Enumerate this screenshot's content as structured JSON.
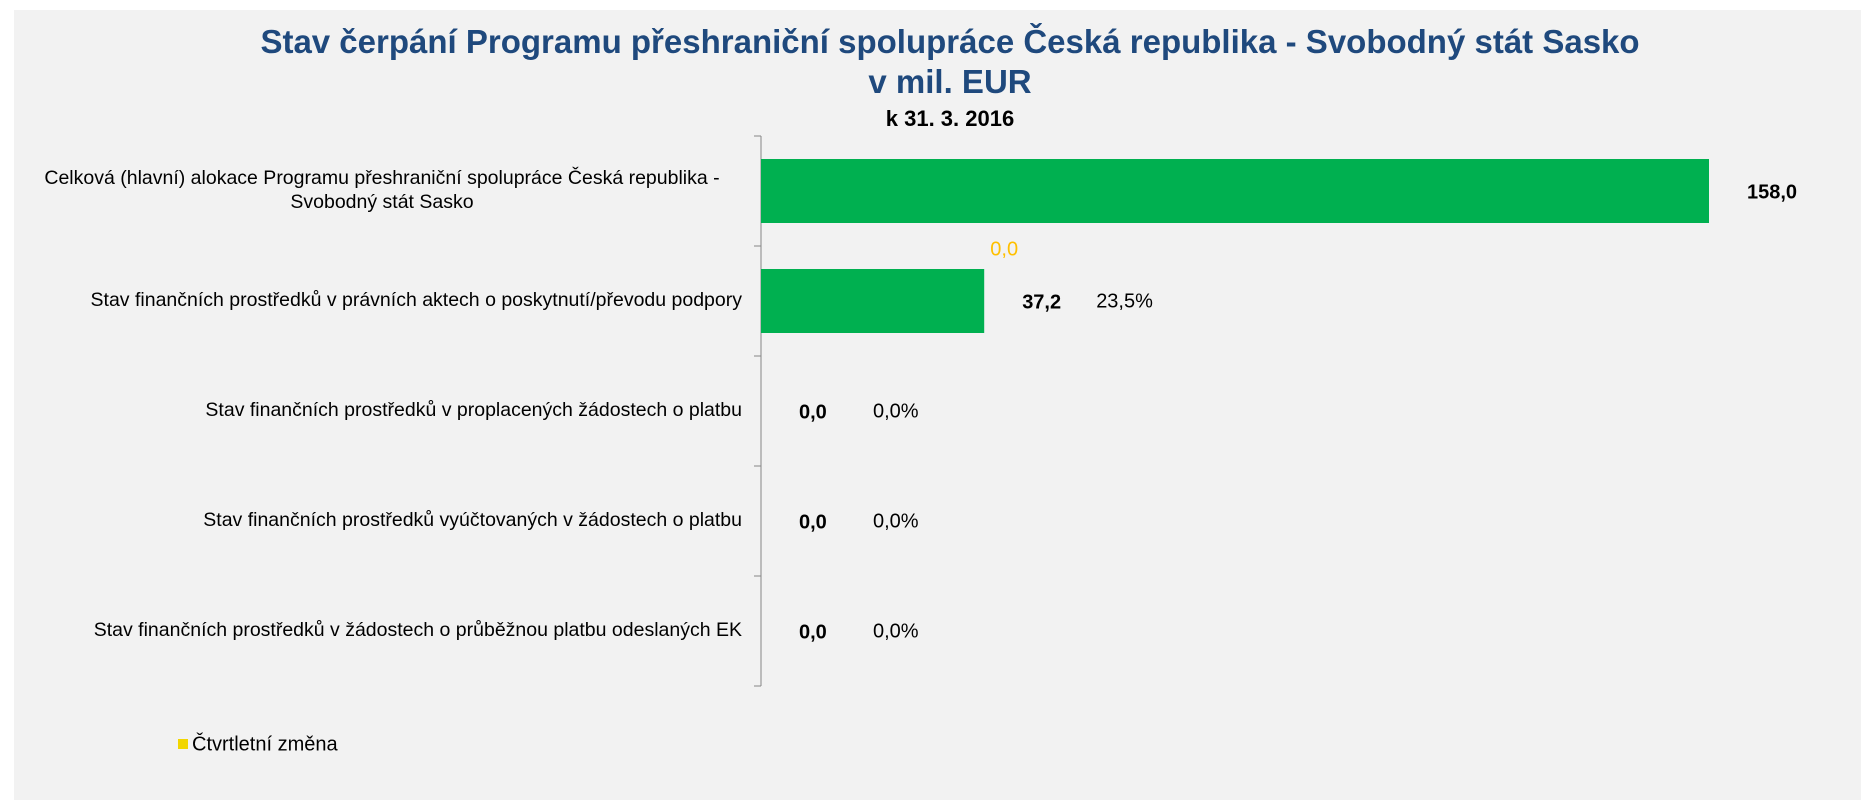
{
  "chart_data": {
    "type": "bar",
    "orientation": "horizontal",
    "title": "Stav čerpání Programu přeshraniční spolupráce Česká republika - Svobodný stát Sasko v mil. EUR",
    "subtitle": "k 31. 3. 2016",
    "categories": [
      "Celková (hlavní) alokace Programu přeshraniční spolupráce Česká republika - Svobodný stát Sasko",
      "Stav finančních prostředků v právních aktech o poskytnutí/převodu podpory",
      "Stav finančních prostředků v proplacených žádostech o platbu",
      "Stav finančních prostředků vyúčtovaných v žádostech o platbu",
      "Stav finančních prostředků v žádostech o průběžnou platbu odeslaných EK"
    ],
    "values": [
      158.0,
      37.2,
      0,
      0,
      0
    ],
    "value_labels": [
      "158,0",
      "37,2",
      "0,0",
      "0,0",
      "0,0"
    ],
    "color": "#00b050",
    "shares": [
      null,
      23.5,
      0,
      0,
      0
    ],
    "share_labels": [
      null,
      "23,5%",
      "0,0%",
      "0,0%",
      "0,0%"
    ],
    "series": [
      {
        "name": "Čtvrtletní změna",
        "color": "#ffc000",
        "legend_color": "#f2d600",
        "values": [
          null,
          0,
          null,
          null,
          null
        ],
        "value_labels": [
          null,
          "0,0",
          null,
          null,
          null
        ]
      }
    ],
    "xlim": [
      0,
      160
    ],
    "legend": "bottom-left"
  }
}
